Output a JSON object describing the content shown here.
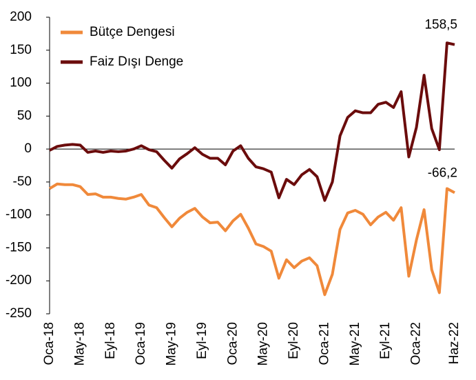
{
  "chart_data": {
    "type": "line",
    "categories": [
      "Oca-18",
      null,
      null,
      null,
      "May-18",
      null,
      null,
      null,
      "Eyl-18",
      null,
      null,
      null,
      "Oca-19",
      null,
      null,
      null,
      "May-19",
      null,
      null,
      null,
      "Eyl-19",
      null,
      null,
      null,
      "Oca-20",
      null,
      null,
      null,
      "May-20",
      null,
      null,
      null,
      "Eyl-20",
      null,
      null,
      null,
      "Oca-21",
      null,
      null,
      null,
      "May-21",
      null,
      null,
      null,
      "Eyl-21",
      null,
      null,
      null,
      "Oca-22",
      null,
      null,
      null,
      null,
      "Haz-22"
    ],
    "series": [
      {
        "name": "Bütçe Dengesi",
        "color": "#f0893a",
        "values": [
          -60,
          -53,
          -54,
          -54,
          -57,
          -69,
          -68,
          -73,
          -73,
          -75,
          -76,
          -73,
          -69,
          -85,
          -89,
          -104,
          -118,
          -105,
          -96,
          -90,
          -103,
          -112,
          -111,
          -124,
          -109,
          -99,
          -120,
          -144,
          -148,
          -155,
          -196,
          -168,
          -180,
          -170,
          -165,
          -177,
          -221,
          -190,
          -122,
          -97,
          -93,
          -99,
          -115,
          -103,
          -96,
          -108,
          -89,
          -193,
          -138,
          -92,
          -183,
          -218,
          -60,
          -66.2
        ],
        "value_labels": [
          null,
          null,
          null,
          null,
          null,
          null,
          null,
          null,
          null,
          null,
          null,
          null,
          null,
          null,
          null,
          null,
          null,
          null,
          null,
          null,
          null,
          null,
          null,
          null,
          null,
          null,
          null,
          null,
          null,
          null,
          null,
          null,
          null,
          null,
          null,
          null,
          null,
          null,
          null,
          null,
          null,
          null,
          null,
          null,
          null,
          null,
          null,
          null,
          null,
          null,
          null,
          null,
          null,
          "-66,2"
        ]
      },
      {
        "name": "Faiz Dışı Denge",
        "color": "#6b0c0c",
        "values": [
          -2,
          4,
          6,
          7,
          6,
          -5,
          -3,
          -5,
          -3,
          -4,
          -3,
          0,
          5,
          -1,
          -4,
          -17,
          -29,
          -15,
          -7,
          2,
          -8,
          -14,
          -14,
          -24,
          -3,
          5,
          -14,
          -27,
          -30,
          -35,
          -74,
          -46,
          -54,
          -39,
          -31,
          -42,
          -78,
          -50,
          20,
          48,
          58,
          55,
          55,
          68,
          71,
          63,
          87,
          -12,
          33,
          112,
          31,
          -1,
          161,
          158.5
        ],
        "value_labels": [
          null,
          null,
          null,
          null,
          null,
          null,
          null,
          null,
          null,
          null,
          null,
          null,
          null,
          null,
          null,
          null,
          null,
          null,
          null,
          null,
          null,
          null,
          null,
          null,
          null,
          null,
          null,
          null,
          null,
          null,
          null,
          null,
          null,
          null,
          null,
          null,
          null,
          null,
          null,
          null,
          null,
          null,
          null,
          null,
          null,
          null,
          null,
          null,
          null,
          null,
          null,
          null,
          null,
          "158,5"
        ]
      }
    ],
    "ylim": [
      -250,
      200
    ],
    "yticks": [
      -250,
      -200,
      -150,
      -100,
      -50,
      0,
      50,
      100,
      150,
      200
    ],
    "legend": "upper left"
  }
}
